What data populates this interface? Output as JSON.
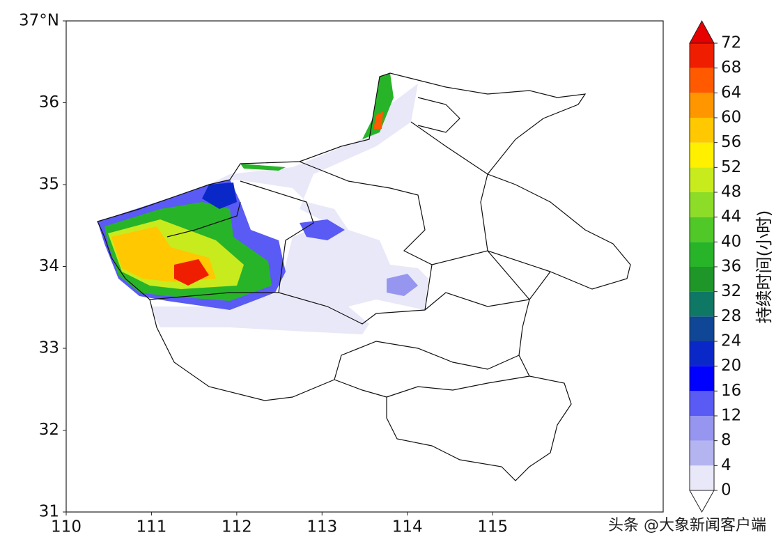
{
  "map": {
    "xlim": [
      110,
      117
    ],
    "ylim": [
      31,
      37
    ],
    "xticks": [
      110,
      111,
      112,
      113,
      114,
      115
    ],
    "yticks": [
      31,
      32,
      33,
      34,
      35,
      36,
      {
        "value": 37,
        "label": "37°N"
      }
    ],
    "colorbar": {
      "label": "持续时间(小时)",
      "levels": [
        0,
        4,
        8,
        12,
        16,
        20,
        24,
        28,
        32,
        36,
        40,
        44,
        48,
        52,
        56,
        60,
        64,
        68,
        72
      ],
      "colors": [
        "#e8e8f8",
        "#b4b4f0",
        "#9696f0",
        "#5a5af5",
        "#0000ff",
        "#0a28c8",
        "#0f4696",
        "#0f7864",
        "#1e9628",
        "#28b428",
        "#50c828",
        "#8cdc28",
        "#c8eb1e",
        "#fff000",
        "#ffc800",
        "#ff9600",
        "#ff5a00",
        "#f01e00"
      ],
      "over_color": "#e60000",
      "under_color": "#ffffff"
    },
    "watermark": "头条 @大象新闻客户端"
  }
}
